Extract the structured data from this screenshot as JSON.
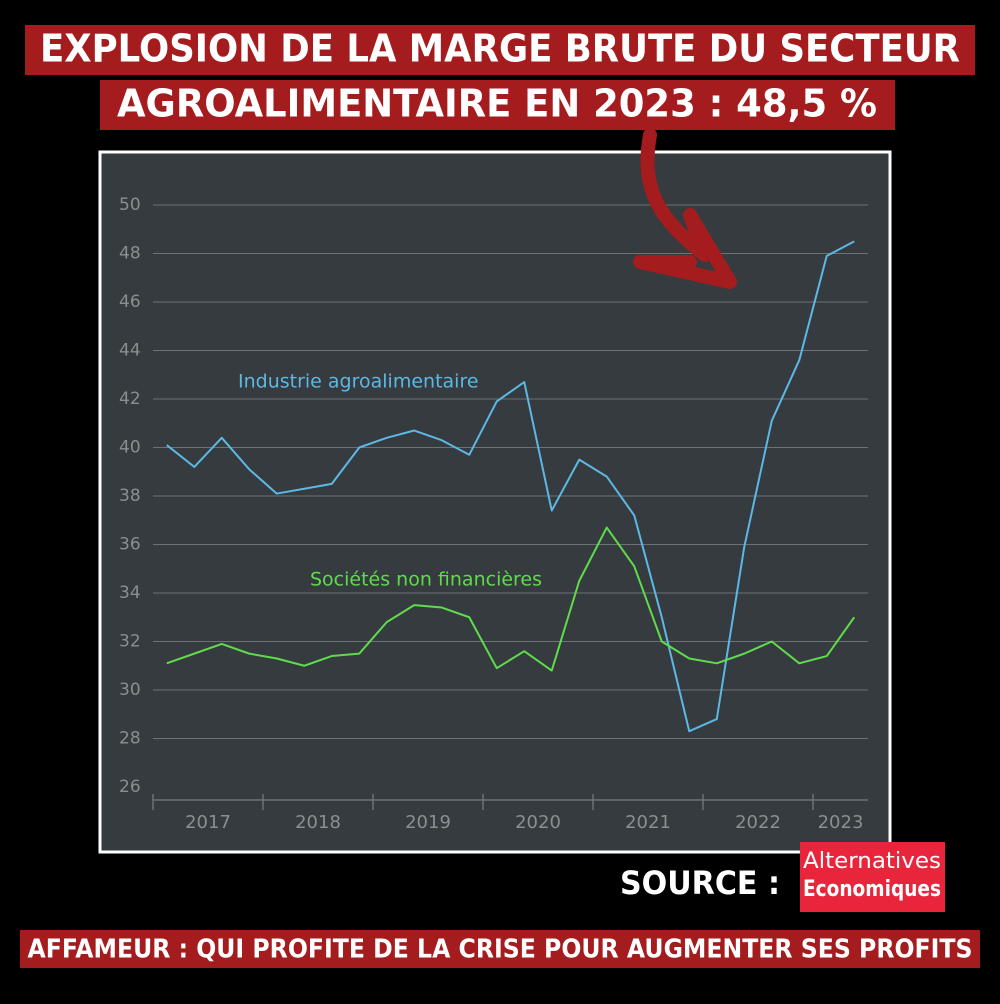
{
  "title_lines": [
    "EXPLOSION DE LA MARGE BRUTE DU SECTEUR",
    "AGROALIMENTAIRE EN 2023 : 48,5 %"
  ],
  "chart_data": {
    "type": "line",
    "x": [
      2017.125,
      2017.375,
      2017.625,
      2017.875,
      2018.125,
      2018.375,
      2018.625,
      2018.875,
      2019.125,
      2019.375,
      2019.625,
      2019.875,
      2020.125,
      2020.375,
      2020.625,
      2020.875,
      2021.125,
      2021.375,
      2021.625,
      2021.875,
      2022.125,
      2022.375,
      2022.625,
      2022.875,
      2023.125,
      2023.375
    ],
    "series": [
      {
        "name": "Industrie agroalimentaire",
        "color": "#5cb8e4",
        "values": [
          40.1,
          39.2,
          40.4,
          39.1,
          38.1,
          38.3,
          38.5,
          40.0,
          40.4,
          40.7,
          40.3,
          39.7,
          41.9,
          42.7,
          37.4,
          39.5,
          38.8,
          37.2,
          33.0,
          28.3,
          28.8,
          35.9,
          41.1,
          43.6,
          47.9,
          48.5
        ]
      },
      {
        "name": "Sociétés non financières",
        "color": "#5fdc4c",
        "values": [
          31.1,
          31.5,
          31.9,
          31.5,
          31.3,
          31.0,
          31.4,
          31.5,
          32.8,
          33.5,
          33.4,
          33.0,
          30.9,
          31.6,
          30.8,
          34.5,
          36.7,
          35.1,
          32.0,
          31.3,
          31.1,
          31.5,
          32.0,
          31.1,
          31.4,
          33.0
        ]
      }
    ],
    "xlim": [
      2017,
      2023.5
    ],
    "xticks": [
      {
        "value": 2017.5,
        "label": "2017"
      },
      {
        "value": 2018.5,
        "label": "2018"
      },
      {
        "value": 2019.5,
        "label": "2019"
      },
      {
        "value": 2020.5,
        "label": "2020"
      },
      {
        "value": 2021.5,
        "label": "2021"
      },
      {
        "value": 2022.5,
        "label": "2022"
      },
      {
        "value": 2023.25,
        "label": "2023"
      }
    ],
    "ylim": [
      26,
      50
    ],
    "yticks": [
      26,
      28,
      30,
      32,
      34,
      36,
      38,
      40,
      42,
      44,
      46,
      48,
      50
    ],
    "grid": true
  },
  "source": {
    "label": "SOURCE :",
    "logo": [
      "Alternatives",
      "Economiques"
    ]
  },
  "footer": "AFFAMEUR : QUI PROFITE DE LA CRISE POUR AUGMENTER SES PROFITS"
}
